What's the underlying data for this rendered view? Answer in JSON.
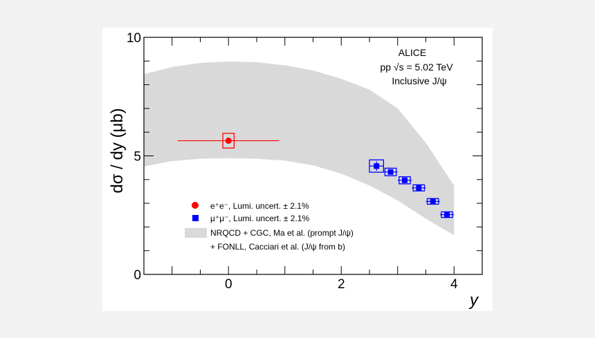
{
  "chart_data": {
    "type": "scatter",
    "title": "",
    "xlabel": "y",
    "ylabel": "dσ / dy (μb)",
    "xlim": [
      -1.5,
      4.5
    ],
    "ylim": [
      0,
      10
    ],
    "x_ticks": [
      "0",
      "2",
      "4"
    ],
    "y_ticks": [
      "0",
      "5",
      "10"
    ],
    "annotations": [
      "ALICE",
      "pp √s = 5.02 TeV",
      "Inclusive J/ψ"
    ],
    "series": [
      {
        "name": "e⁺e⁻, Lumi. uncert. ± 2.1%",
        "color": "#ff0000",
        "marker": "circle",
        "points": [
          {
            "x": 0.0,
            "y": 5.64,
            "x_err": 0.9,
            "y_err": 0.12,
            "sys_dx": 0.1,
            "sys_dy": 0.31
          }
        ]
      },
      {
        "name": "μ⁺μ⁻, Lumi. uncert. ± 2.1%",
        "color": "#0000ff",
        "marker": "square",
        "points": [
          {
            "x": 2.625,
            "y": 4.57,
            "x_err": 0.125,
            "y_err": 0.2,
            "sys_dx": 0.125,
            "sys_dy": 0.26
          },
          {
            "x": 2.875,
            "y": 4.32,
            "x_err": 0.125,
            "y_err": 0.1,
            "sys_dx": 0.1,
            "sys_dy": 0.16
          },
          {
            "x": 3.125,
            "y": 3.97,
            "x_err": 0.125,
            "y_err": 0.1,
            "sys_dx": 0.1,
            "sys_dy": 0.15
          },
          {
            "x": 3.375,
            "y": 3.65,
            "x_err": 0.125,
            "y_err": 0.08,
            "sys_dx": 0.1,
            "sys_dy": 0.13
          },
          {
            "x": 3.625,
            "y": 3.08,
            "x_err": 0.125,
            "y_err": 0.06,
            "sys_dx": 0.1,
            "sys_dy": 0.12
          },
          {
            "x": 3.875,
            "y": 2.52,
            "x_err": 0.125,
            "y_err": 0.05,
            "sys_dx": 0.1,
            "sys_dy": 0.12
          }
        ]
      }
    ],
    "band": {
      "name": "NRQCD + CGC, Ma et al. (prompt J/ψ)",
      "name_line2": "+ FONLL, Cacciari et al. (J/ψ from b)",
      "color": "#d9d9d9",
      "x": [
        -1.5,
        -1.0,
        -0.5,
        0.0,
        0.5,
        1.0,
        1.5,
        2.0,
        2.5,
        3.0,
        3.5,
        4.0
      ],
      "upper": [
        8.45,
        8.75,
        8.92,
        8.98,
        8.95,
        8.82,
        8.6,
        8.25,
        7.8,
        7.0,
        5.55,
        3.75
      ],
      "lower": [
        4.55,
        4.78,
        4.88,
        4.9,
        4.88,
        4.8,
        4.6,
        4.25,
        3.75,
        3.12,
        2.35,
        1.65
      ]
    },
    "legend_position": "bottom-left",
    "grid": false
  }
}
